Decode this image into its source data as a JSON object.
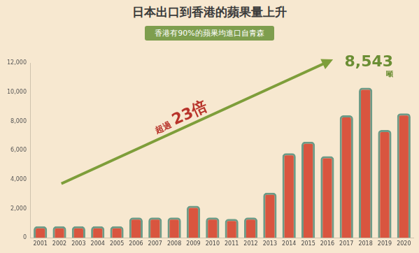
{
  "chart_data": {
    "type": "bar",
    "title": "日本出口到香港的蘋果量上升",
    "subtitle": "香港有90%的蘋果均進口自青森",
    "annotations": [
      {
        "text": "超過"
      },
      {
        "text": "23倍"
      },
      {
        "text": "8,543"
      },
      {
        "text": "噸"
      }
    ],
    "categories": [
      "2001",
      "2002",
      "2003",
      "2004",
      "2005",
      "2006",
      "2007",
      "2008",
      "2009",
      "2010",
      "2011",
      "2012",
      "2013",
      "2014",
      "2015",
      "2016",
      "2017",
      "2018",
      "2019",
      "2020"
    ],
    "values": [
      800,
      800,
      800,
      800,
      800,
      1400,
      1400,
      1400,
      2200,
      1400,
      1300,
      1400,
      3100,
      5800,
      6600,
      5600,
      8400,
      10300,
      7400,
      8543
    ],
    "color": "#d9553f",
    "ylim": [
      0,
      12000
    ],
    "yticks": [
      0,
      {
        "value": 2000,
        "label": "2,000"
      },
      {
        "value": 4000,
        "label": "4,000"
      },
      {
        "value": 6000,
        "label": "6,000"
      },
      {
        "value": 8000,
        "label": "8,000"
      },
      {
        "value": 10000,
        "label": "10,000"
      },
      {
        "value": 12000,
        "label": "12,000"
      }
    ],
    "grid": false
  }
}
